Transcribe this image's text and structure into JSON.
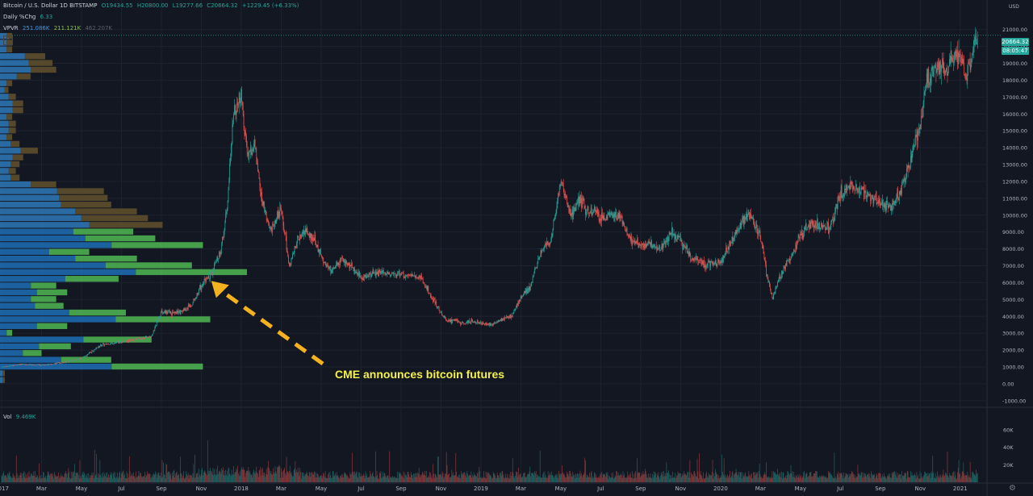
{
  "legend": {
    "title": "Bitcoin / U.S. Dollar  1D  BITSTAMP",
    "open": "O19434.55",
    "high": "H20800.00",
    "low": "L19277.66",
    "close": "C20664.32",
    "change": "+1229.45 (+6.33%)",
    "daily_label": "Daily %Chg",
    "daily_value": "6.33",
    "vpvr_label": "VPVR",
    "vpvr_up": "251.086K",
    "vpvr_down": "211.121K",
    "vpvr_total": "462.207K",
    "vol_label": "Vol",
    "vol_value": "9.469K"
  },
  "price_axis": {
    "unit": "USD",
    "ticks": [
      "21000.00",
      "20000.00",
      "19000.00",
      "18000.00",
      "17000.00",
      "16000.00",
      "15000.00",
      "14000.00",
      "13000.00",
      "12000.00",
      "11000.00",
      "10000.00",
      "9000.00",
      "8000.00",
      "7000.00",
      "6000.00",
      "5000.00",
      "4000.00",
      "3000.00",
      "2000.00",
      "1000.00",
      "0.00",
      "-1000.00"
    ],
    "tick_values": [
      21000,
      20000,
      19000,
      18000,
      17000,
      16000,
      15000,
      14000,
      13000,
      12000,
      11000,
      10000,
      9000,
      8000,
      7000,
      6000,
      5000,
      4000,
      3000,
      2000,
      1000,
      0,
      -1000
    ],
    "last_price": "20664.32",
    "countdown": "08:05:47"
  },
  "volume_axis": {
    "ticks": [
      "60K",
      "40K",
      "20K"
    ],
    "tick_values": [
      60000,
      40000,
      20000
    ]
  },
  "time_axis": {
    "labels": [
      "2017",
      "Mar",
      "May",
      "Jul",
      "Sep",
      "Nov",
      "2018",
      "Mar",
      "May",
      "Jul",
      "Sep",
      "Nov",
      "2019",
      "Mar",
      "May",
      "Jul",
      "Sep",
      "Nov",
      "2020",
      "Mar",
      "May",
      "Jul",
      "Sep",
      "Nov",
      "2021"
    ],
    "months_from_jan_2017": [
      0,
      2,
      4,
      6,
      8,
      10,
      12,
      14,
      16,
      18,
      20,
      22,
      24,
      26,
      28,
      30,
      32,
      34,
      36,
      38,
      40,
      42,
      44,
      46,
      48
    ]
  },
  "annotation": {
    "text": "CME announces bitcoin futures",
    "target_month": 10.5,
    "target_price": 6100
  },
  "colors": {
    "background": "#131722",
    "up": "#26a69a",
    "down": "#ef5350",
    "vpvr_up": "#2e79b9",
    "vpvr_up_value_area": "#1f6fb5",
    "vpvr_down": "#5d4e2c",
    "vpvr_down_value_area": "#4caf50",
    "annotation": "#f5b21f",
    "annotation_text": "#f5f04a",
    "grid": "#1e2230"
  },
  "chart_data": {
    "type": "candlestick",
    "symbol": "Bitcoin / U.S. Dollar",
    "interval": "1D",
    "exchange": "BITSTAMP",
    "ylim": [
      -1200,
      21800
    ],
    "x_unit": "months since Jan 2017",
    "xlim": [
      0,
      49.3
    ],
    "grid": true,
    "price_path": {
      "months": [
        0,
        1,
        2,
        3,
        4,
        5,
        6,
        7,
        7.5,
        8,
        8.5,
        9,
        9.5,
        10,
        10.5,
        11,
        11.3,
        11.6,
        12,
        12.3,
        12.7,
        13,
        13.5,
        14,
        14.4,
        14.8,
        15.3,
        15.7,
        16,
        16.5,
        17,
        17.5,
        18,
        18.5,
        19,
        19.5,
        20,
        20.5,
        21,
        21.5,
        22,
        22.3,
        22.7,
        23,
        23.5,
        24,
        24.5,
        25,
        25.5,
        26,
        26.5,
        27,
        27.5,
        28,
        28.5,
        29,
        29.3,
        29.7,
        30,
        30.5,
        31,
        31.5,
        32,
        32.5,
        33,
        33.5,
        34,
        34.5,
        35,
        35.5,
        36,
        36.5,
        37,
        37.5,
        38,
        38.3,
        38.6,
        39,
        39.5,
        40,
        40.5,
        41,
        41.5,
        42,
        42.5,
        43,
        43.5,
        44,
        44.5,
        45,
        45.5,
        46,
        46.3,
        46.6,
        47,
        47.3,
        47.6,
        47.9,
        48.1,
        48.3,
        48.5,
        48.7,
        48.9
      ],
      "close": [
        1000,
        1150,
        1100,
        1250,
        1500,
        2300,
        2500,
        2700,
        2800,
        4300,
        4200,
        4300,
        4700,
        5800,
        6500,
        8000,
        10500,
        16000,
        17000,
        13500,
        14000,
        11000,
        9000,
        10500,
        7000,
        8500,
        9000,
        8500,
        7500,
        6600,
        7300,
        7000,
        6300,
        6500,
        6600,
        6500,
        6500,
        6400,
        6300,
        5200,
        4200,
        3700,
        3800,
        3600,
        3700,
        3600,
        3500,
        3800,
        4000,
        5100,
        5800,
        7900,
        8500,
        12000,
        10000,
        11000,
        10200,
        10300,
        9800,
        10100,
        9800,
        8500,
        8200,
        8300,
        8000,
        9000,
        8500,
        7500,
        7200,
        7100,
        7200,
        8300,
        9500,
        10000,
        8800,
        6500,
        5000,
        6500,
        7500,
        8800,
        9500,
        9300,
        9200,
        11300,
        11700,
        11500,
        11000,
        10800,
        10400,
        11500,
        13200,
        15500,
        17800,
        18500,
        19000,
        18500,
        19300,
        19500,
        19000,
        18000,
        19200,
        20000,
        20664
      ]
    },
    "volume_ticks": [
      "60K",
      "40K",
      "20K"
    ],
    "vpvr_profile_note": "volume profile visible range, left side"
  }
}
